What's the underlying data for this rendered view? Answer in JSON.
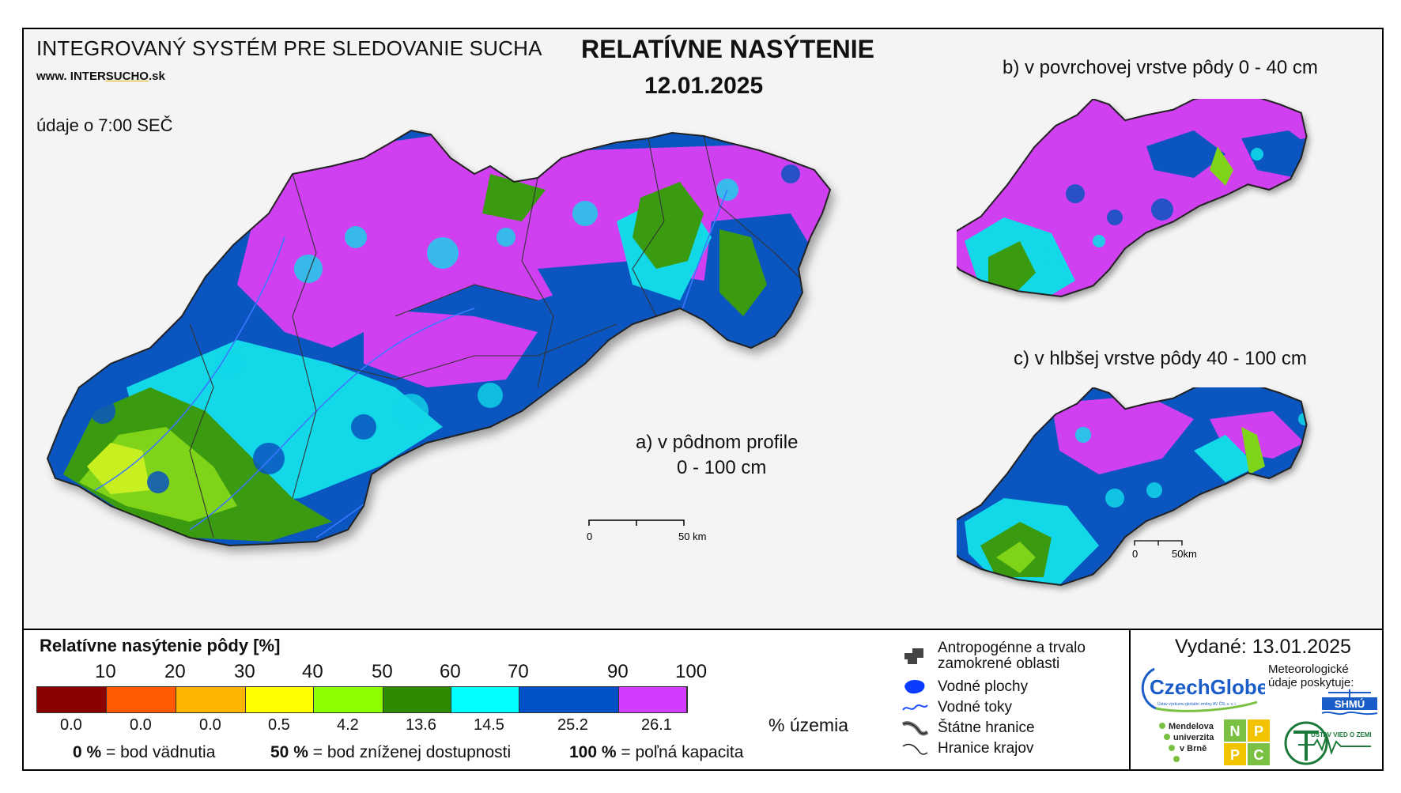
{
  "header": {
    "system_title": "INTEGROVANÝ SYSTÉM PRE SLEDOVANIE SUCHA",
    "website_prefix": "www. INTER",
    "website_brand": "SUCHO",
    "website_suffix": ".sk",
    "observation_time": "údaje o 7:00 SEČ",
    "main_title": "RELATÍVNE NASÝTENIE",
    "date": "12.01.2025"
  },
  "maps": {
    "a_label_line1": "a) v pôdnom profile",
    "a_label_line2": "0 - 100 cm",
    "b_label": "b) v povrchovej vrstve pôdy 0 - 40 cm",
    "c_label": "c) v hlbšej vrstve pôdy 40 - 100 cm",
    "scale_main_zero": "0",
    "scale_main_end": "50 km",
    "scale_small_zero": "0",
    "scale_small_end": "50km"
  },
  "legend": {
    "title": "Relatívne nasýtenie pôdy [%]",
    "ticks": [
      "10",
      "20",
      "30",
      "40",
      "50",
      "60",
      "70",
      "90",
      "100"
    ],
    "colors": [
      "#8b0000",
      "#ff5a00",
      "#ffb400",
      "#ffff00",
      "#8cff00",
      "#2e8b00",
      "#00ffff",
      "#0050c8",
      "#d23cff"
    ],
    "area_percent": [
      "0.0",
      "0.0",
      "0.0",
      "0.5",
      "4.2",
      "13.6",
      "14.5",
      "25.2",
      "26.1"
    ],
    "area_unit": "% územia",
    "def_0_value": "0 %",
    "def_0_text": "= bod vädnutia",
    "def_50_value": "50 %",
    "def_50_text": "= bod zníženej dostupnosti",
    "def_100_value": "100 %",
    "def_100_text": "= poľná kapacita"
  },
  "symbols": {
    "anthropogenic_line1": "Antropogénne a trvalo",
    "anthropogenic_line2": "zamokrené oblasti",
    "water_bodies": "Vodné plochy",
    "water_streams": "Vodné toky",
    "state_borders": "Štátne hranice",
    "region_borders": "Hranice krajov"
  },
  "footer": {
    "issued": "Vydané: 13.01.2025",
    "czechglobe": "CzechGlobe",
    "czechglobe_sub": "Ústav výzkumu globální změny AV ČR, v. v. i.",
    "meteo_text": "Meteorologické údaje poskytuje:",
    "shmu": "SHMÚ",
    "mendel_line1": "Mendelova",
    "mendel_line2": "univerzita",
    "mendel_line3": "v Brně",
    "nppc_letters": [
      "N",
      "P",
      "P",
      "C"
    ],
    "uvz": "ÚSTAV VIED O ZEMI"
  }
}
